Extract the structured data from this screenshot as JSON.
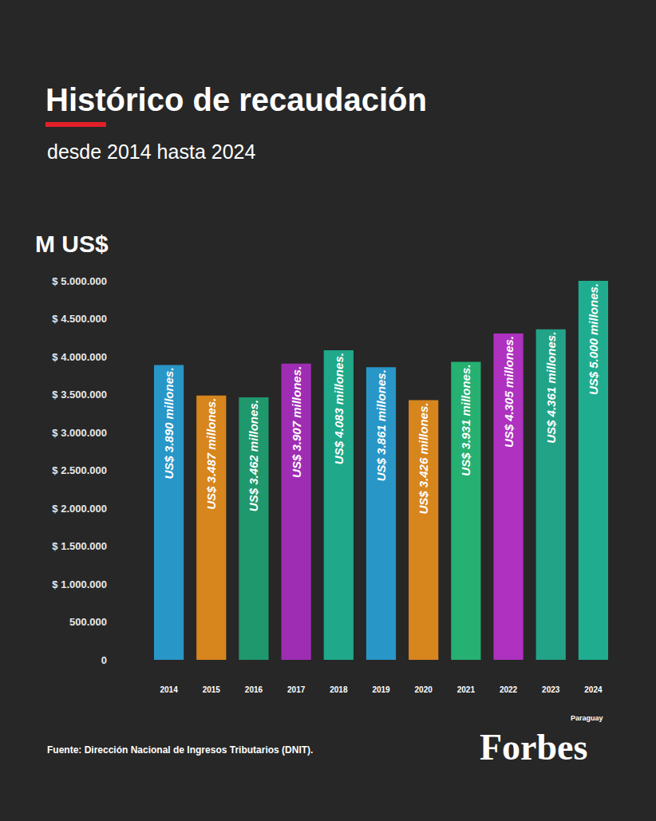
{
  "chart_data": {
    "type": "bar",
    "title": "Histórico de recaudación",
    "subtitle": "desde 2014 hasta 2024",
    "y_label": "M US$",
    "categories": [
      "2014",
      "2015",
      "2016",
      "2017",
      "2018",
      "2019",
      "2020",
      "2021",
      "2022",
      "2023",
      "2024"
    ],
    "values": [
      3890000,
      3487000,
      3462000,
      3907000,
      4083000,
      3861000,
      3426000,
      3931000,
      4305000,
      4361000,
      5000000
    ],
    "value_labels": [
      "US$ 3.890 millones.",
      "US$ 3.487 millones.",
      "US$ 3.462 millones.",
      "US$ 3.907 millones.",
      "US$ 4.083 millones.",
      "US$ 3.861 millones.",
      "US$ 3.426 millones.",
      "US$ 3.931 millones.",
      "US$ 4.305 millones.",
      "US$ 4.361 millones.",
      "US$ 5.000 millones."
    ],
    "colors": [
      "#2aa6df",
      "#f0931d",
      "#1fa877",
      "#b12fc8",
      "#1fbb98",
      "#2aa6df",
      "#f0931d",
      "#27c47c",
      "#c233d5",
      "#22b596",
      "#20c09e"
    ],
    "ylim": [
      0,
      5000000
    ],
    "yticks": [
      0,
      {
        "value": 500000,
        "label": "500.000"
      },
      {
        "value": 1000000,
        "label": "$ 1.000.000"
      },
      {
        "value": 1500000,
        "label": "$ 1.500.000"
      },
      {
        "value": 2000000,
        "label": "$ 2.000.000"
      },
      {
        "value": 2500000,
        "label": "$ 2.500.000"
      },
      {
        "value": 3000000,
        "label": "$ 3.000.000"
      },
      {
        "value": 3500000,
        "label": "$ 3.500.000"
      },
      {
        "value": 4000000,
        "label": "$ 4.000.000"
      },
      {
        "value": 4500000,
        "label": "$ 4.500.000"
      },
      {
        "value": 5000000,
        "label": "$ 5.000.000"
      }
    ],
    "grid": false,
    "data_labels": true,
    "source": "Fuente: Dirección Nacional de Ingresos Tributarios (DNIT).",
    "logo": "Forbes",
    "logo_note": "Paraguay"
  }
}
